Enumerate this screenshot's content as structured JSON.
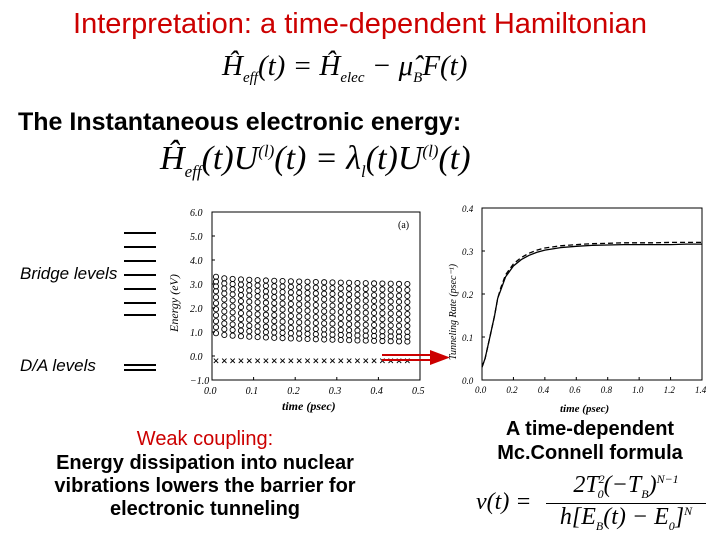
{
  "title": "Interpretation: a time-dependent Hamiltonian",
  "eq1": {
    "lhs": "Ĥ",
    "lhs_sub": "eff",
    "t1": "(t) = ",
    "h2": "Ĥ",
    "h2_sub": "elec",
    "minus": " − ",
    "mu": "μ̂",
    "mu_sub": "B",
    "rest": "F(t)"
  },
  "subheading": "The Instantaneous electronic energy:",
  "eq2": {
    "h": "Ĥ",
    "h_sub": "eff",
    "a": "(t)U",
    "a_sup": "(l)",
    "b": "(t) = λ",
    "b_sub": "l",
    "c": "(t)U",
    "c_sup": "(l)",
    "d": "(t)"
  },
  "labels": {
    "bridge": "Bridge levels",
    "da": "D/A levels"
  },
  "left_panel": {
    "tag": "(a)",
    "ylabel": "Energy (eV)",
    "xlabel": "time (psec)",
    "yticks": [
      "6.0",
      "5.0",
      "4.0",
      "3.0",
      "2.0",
      "1.0",
      "0.0",
      "−1.0"
    ],
    "xticks": [
      "0.0",
      "0.1",
      "0.2",
      "0.3",
      "0.4",
      "0.5"
    ]
  },
  "right_panel": {
    "ylabel": "Tunneling Rate (psec⁻¹)",
    "xlabel": "time (psec)",
    "yticks": [
      "0.4",
      "0.3",
      "0.2",
      "0.1",
      "0.0"
    ],
    "xticks": [
      "0.0",
      "0.2",
      "0.4",
      "0.6",
      "0.8",
      "1.0",
      "1.2",
      "1.4"
    ]
  },
  "caption": {
    "line1": "Weak coupling:",
    "line2": "Energy dissipation into nuclear",
    "line3": "vibrations lowers the barrier for",
    "line4": "electronic tunneling"
  },
  "mcconnell": {
    "line1": "A time-dependent",
    "line2": "Mc.Connell formula"
  },
  "eq3": {
    "lhs": "ν(t) =",
    "num": "2T",
    "num_sup": "2",
    "num_sub": "0",
    "num_rest": "(−T",
    "num_rest_sub": "B",
    "num_close": ")",
    "num_exp": "N−1",
    "den": "h[E",
    "den_sub": "B",
    "den_mid": "(t) − E",
    "den_sub2": "0",
    "den_close": "]",
    "den_exp": "N"
  },
  "chart_data": [
    {
      "type": "scatter",
      "title": "",
      "tag": "(a)",
      "xlabel": "time (psec)",
      "ylabel": "Energy (eV)",
      "xlim": [
        0.0,
        0.5
      ],
      "ylim": [
        -1.0,
        6.0
      ],
      "series": [
        {
          "marker": "o",
          "y_start": 3.3,
          "y_end": 3.0
        },
        {
          "marker": "o",
          "y_start": 3.1,
          "y_end": 2.75
        },
        {
          "marker": "o",
          "y_start": 2.9,
          "y_end": 2.5
        },
        {
          "marker": "o",
          "y_start": 2.7,
          "y_end": 2.25
        },
        {
          "marker": "o",
          "y_start": 2.45,
          "y_end": 2.0
        },
        {
          "marker": "o",
          "y_start": 2.2,
          "y_end": 1.75
        },
        {
          "marker": "o",
          "y_start": 1.95,
          "y_end": 1.5
        },
        {
          "marker": "o",
          "y_start": 1.7,
          "y_end": 1.25
        },
        {
          "marker": "o",
          "y_start": 1.45,
          "y_end": 1.0
        },
        {
          "marker": "o",
          "y_start": 1.2,
          "y_end": 0.8
        },
        {
          "marker": "o",
          "y_start": 0.95,
          "y_end": 0.6
        },
        {
          "marker": "x",
          "y_start": -0.2,
          "y_end": -0.2
        }
      ],
      "x_points": [
        0.0,
        0.02,
        0.04,
        0.06,
        0.08,
        0.1,
        0.12,
        0.14,
        0.16,
        0.18,
        0.2,
        0.22,
        0.24,
        0.26,
        0.28,
        0.3,
        0.32,
        0.34,
        0.36,
        0.38,
        0.4,
        0.42,
        0.44,
        0.46
      ]
    },
    {
      "type": "line",
      "title": "",
      "xlabel": "time (psec)",
      "ylabel": "Tunneling Rate (psec⁻¹)",
      "xlim": [
        0.0,
        1.4
      ],
      "ylim": [
        0.0,
        0.4
      ],
      "x": [
        0.0,
        0.02,
        0.05,
        0.08,
        0.1,
        0.12,
        0.15,
        0.2,
        0.25,
        0.3,
        0.35,
        0.4,
        0.5,
        0.6,
        0.7,
        0.8,
        0.9,
        1.0,
        1.1,
        1.2,
        1.3,
        1.4
      ],
      "series": [
        {
          "style": "solid",
          "values": [
            0.03,
            0.05,
            0.1,
            0.15,
            0.19,
            0.21,
            0.24,
            0.265,
            0.28,
            0.29,
            0.297,
            0.302,
            0.308,
            0.311,
            0.313,
            0.314,
            0.315,
            0.315,
            0.315,
            0.315,
            0.316,
            0.316
          ]
        },
        {
          "style": "dashed",
          "values": [
            0.03,
            0.05,
            0.1,
            0.15,
            0.19,
            0.215,
            0.245,
            0.27,
            0.285,
            0.295,
            0.302,
            0.307,
            0.312,
            0.315,
            0.317,
            0.318,
            0.319,
            0.319,
            0.319,
            0.32,
            0.32,
            0.32
          ]
        }
      ]
    }
  ]
}
